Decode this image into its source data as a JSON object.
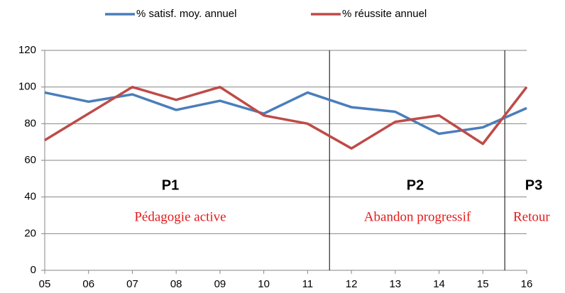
{
  "chart_data": {
    "type": "line",
    "categories": [
      "05",
      "06",
      "07",
      "08",
      "09",
      "10",
      "11",
      "12",
      "13",
      "14",
      "15",
      "16"
    ],
    "series": [
      {
        "name": "% satisf. moy. annuel",
        "color": "#4a7ebb",
        "values": [
          97,
          92,
          96,
          87.5,
          92.5,
          85.5,
          97,
          89,
          86.5,
          74.5,
          78,
          88.5
        ]
      },
      {
        "name": "% réussite annuel",
        "color": "#be4b48",
        "values": [
          71,
          85.5,
          100,
          93,
          100,
          84.5,
          80,
          66.5,
          81,
          84.5,
          69,
          100
        ]
      }
    ],
    "ylim": [
      0,
      120
    ],
    "yticks": [
      0,
      20,
      40,
      60,
      80,
      100,
      120
    ],
    "grid": true,
    "annotations": [
      {
        "label": "P1",
        "text": "Pédagogie active"
      },
      {
        "label": "P2",
        "text": "Abandon progressif"
      },
      {
        "label": "P3",
        "text": "Retour"
      }
    ]
  }
}
